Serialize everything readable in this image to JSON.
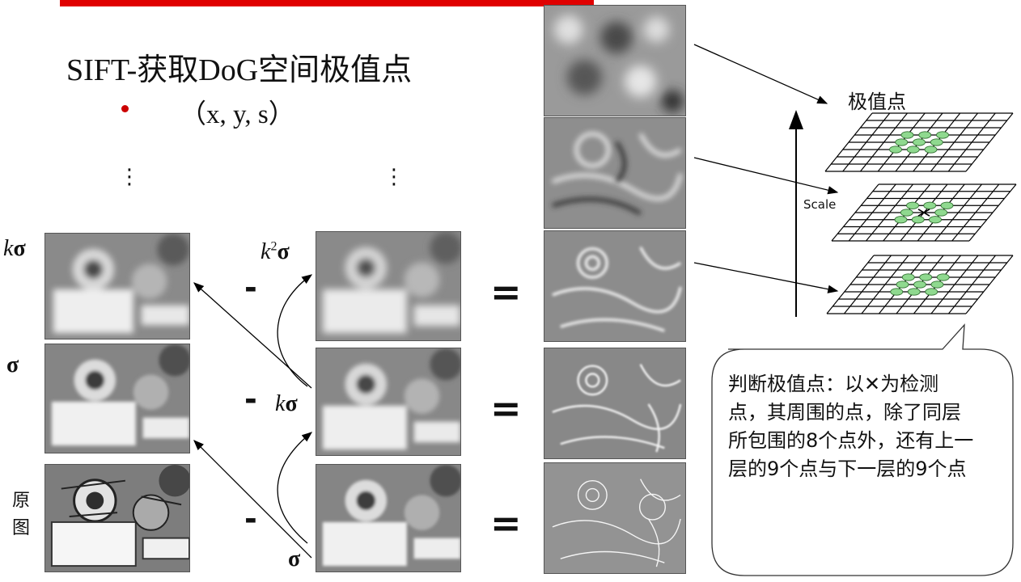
{
  "slide": {
    "title": "SIFT-获取DoG空间极值点",
    "bullet": "（x, y, s）",
    "vdots": "⋮",
    "colors": {
      "accent_bar": "#e00000",
      "bullet": "#cc0000",
      "keypoint": "#8fd98f"
    }
  },
  "pyramid": {
    "left_labels": {
      "k_sigma_k": "k",
      "k_sigma_s": "σ",
      "sigma": "σ"
    },
    "original_label": [
      "原",
      "图"
    ],
    "middle_labels": {
      "k2": "k",
      "k2_sup": "2",
      "k2_s": "σ",
      "k": "k",
      "k_s": "σ",
      "sigma": "σ"
    },
    "minus": "-",
    "equals": "="
  },
  "diagram": {
    "extrema_label": "极值点",
    "scale_label": "Scale",
    "callout": "判断极值点：以✕为检测点，其周围的点，除了同层所包围的8个点外，还有上一层的9个点与下一层的9个点"
  }
}
